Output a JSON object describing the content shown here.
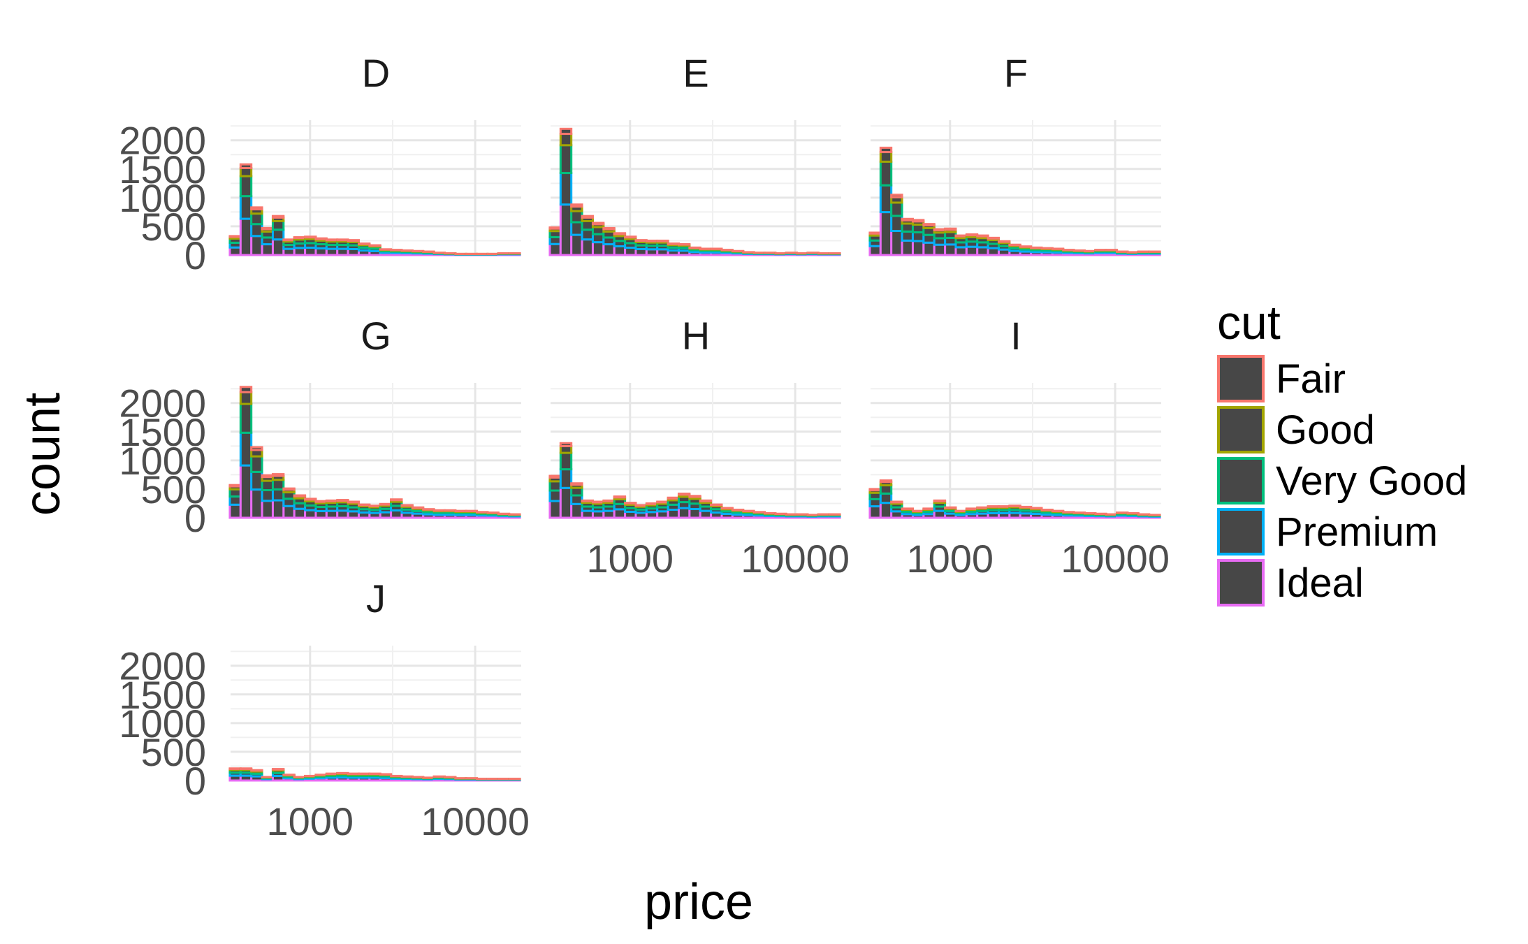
{
  "chart_data": {
    "type": "bar",
    "subtype": "faceted stacked histogram",
    "xlabel": "price",
    "ylabel": "count",
    "x_scale": "log10",
    "xlim": [
      330,
      19000
    ],
    "x_ticks": [
      1000,
      10000
    ],
    "x_tick_labels": [
      "1000",
      "10000"
    ],
    "ylim": [
      0,
      2350
    ],
    "y_ticks": [
      0,
      500,
      1000,
      1500,
      2000
    ],
    "y_tick_labels": [
      "0",
      "500",
      "1000",
      "1500",
      "2000"
    ],
    "grid": true,
    "legend_position": "right",
    "legend": {
      "title": "cut",
      "entries": [
        {
          "name": "Fair",
          "color": "#F8766D"
        },
        {
          "name": "Good",
          "color": "#A3A500"
        },
        {
          "name": "Very Good",
          "color": "#00BF7D"
        },
        {
          "name": "Premium",
          "color": "#00B0F6"
        },
        {
          "name": "Ideal",
          "color": "#E76BF3"
        }
      ]
    },
    "bar_fill": "#474747",
    "bins": [
      352,
      409,
      475,
      552,
      641,
      745,
      865,
      1005,
      1167,
      1356,
      1575,
      1830,
      2125,
      2469,
      2868,
      3331,
      3869,
      4494,
      5220,
      6063,
      7043,
      8180,
      9502,
      11037,
      12820,
      14891,
      17297
    ],
    "bin_width_log10": 0.065,
    "series_order": [
      "Ideal",
      "Premium",
      "Very Good",
      "Good",
      "Fair"
    ],
    "panels": [
      {
        "label": "D",
        "totals": [
          330,
          1580,
          830,
          470,
          680,
          270,
          310,
          320,
          290,
          270,
          270,
          260,
          200,
          170,
          100,
          90,
          80,
          70,
          60,
          40,
          30,
          20,
          20,
          20,
          20,
          30,
          30
        ]
      },
      {
        "label": "E",
        "totals": [
          480,
          2200,
          880,
          680,
          560,
          470,
          380,
          320,
          260,
          250,
          250,
          200,
          190,
          130,
          110,
          110,
          90,
          70,
          50,
          40,
          40,
          30,
          40,
          30,
          40,
          30,
          30
        ]
      },
      {
        "label": "F",
        "totals": [
          390,
          1870,
          1050,
          630,
          610,
          540,
          450,
          460,
          340,
          360,
          340,
          300,
          240,
          180,
          150,
          130,
          120,
          110,
          90,
          80,
          70,
          90,
          90,
          60,
          50,
          60,
          60
        ]
      },
      {
        "label": "G",
        "totals": [
          570,
          2280,
          1230,
          740,
          760,
          510,
          390,
          330,
          290,
          300,
          310,
          280,
          230,
          210,
          240,
          320,
          220,
          180,
          150,
          130,
          130,
          120,
          120,
          100,
          90,
          70,
          60
        ]
      },
      {
        "label": "H",
        "totals": [
          730,
          1300,
          600,
          300,
          280,
          300,
          370,
          260,
          220,
          250,
          280,
          350,
          420,
          380,
          300,
          230,
          170,
          140,
          120,
          100,
          80,
          70,
          60,
          60,
          50,
          60,
          60
        ]
      },
      {
        "label": "I",
        "totals": [
          500,
          650,
          280,
          160,
          120,
          160,
          300,
          180,
          120,
          160,
          180,
          200,
          200,
          210,
          190,
          170,
          140,
          120,
          100,
          90,
          80,
          70,
          60,
          90,
          80,
          60,
          50
        ]
      },
      {
        "label": "J",
        "totals": [
          210,
          210,
          180,
          60,
          200,
          100,
          60,
          80,
          100,
          120,
          130,
          120,
          120,
          120,
          110,
          80,
          70,
          60,
          50,
          70,
          60,
          40,
          40,
          30,
          30,
          30,
          30
        ]
      }
    ],
    "composition_note_ignore": null
  }
}
